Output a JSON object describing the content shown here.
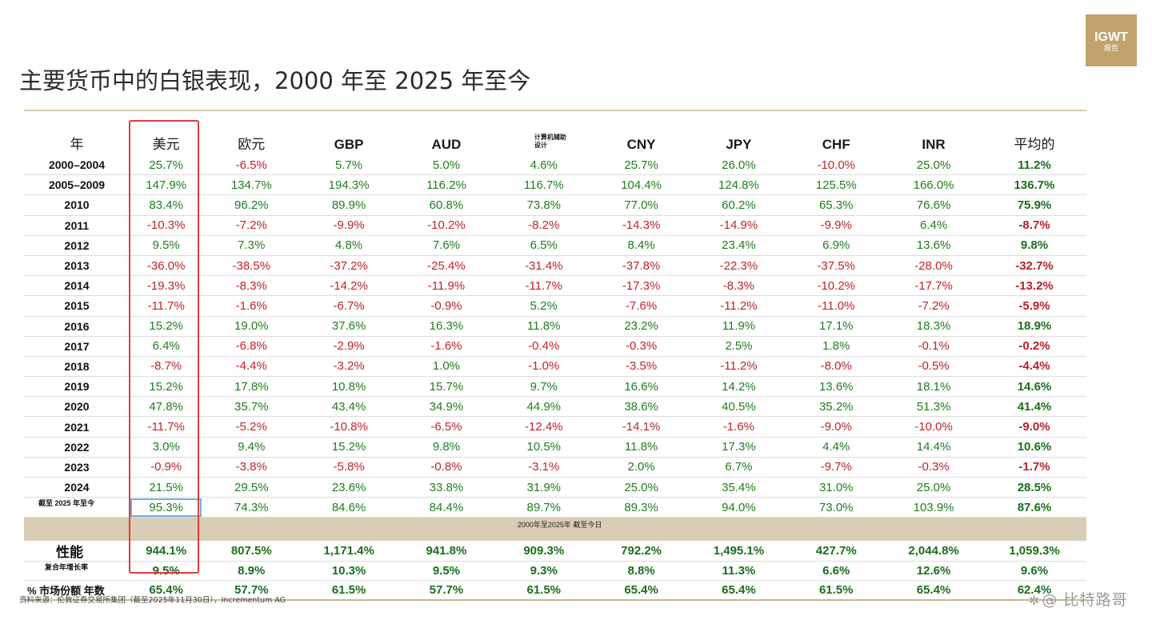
{
  "logo": {
    "line1": "IGWT",
    "line2": "报告"
  },
  "title": "主要货币中的白银表现，2000 年至 2025 年至今",
  "header": {
    "year_col": "年",
    "currencies": [
      "美元",
      "欧元",
      "GBP",
      "AUD",
      "计算机辅助设计",
      "CNY",
      "JPY",
      "CHF",
      "INR",
      "平均的"
    ]
  },
  "rows": [
    {
      "year": "2000–2004",
      "values": [
        "25.7%",
        "-6.5%",
        "5.7%",
        "5.0%",
        "4.6%",
        "25.7%",
        "26.0%",
        "-10.0%",
        "25.0%",
        "11.2%"
      ]
    },
    {
      "year": "2005–2009",
      "values": [
        "147.9%",
        "134.7%",
        "194.3%",
        "116.2%",
        "116.7%",
        "104.4%",
        "124.8%",
        "125.5%",
        "166.0%",
        "136.7%"
      ]
    },
    {
      "year": "2010",
      "values": [
        "83.4%",
        "96.2%",
        "89.9%",
        "60.8%",
        "73.8%",
        "77.0%",
        "60.2%",
        "65.3%",
        "76.6%",
        "75.9%"
      ]
    },
    {
      "year": "2011",
      "values": [
        "-10.3%",
        "-7.2%",
        "-9.9%",
        "-10.2%",
        "-8.2%",
        "-14.3%",
        "-14.9%",
        "-9.9%",
        "6.4%",
        "-8.7%"
      ]
    },
    {
      "year": "2012",
      "values": [
        "9.5%",
        "7.3%",
        "4.8%",
        "7.6%",
        "6.5%",
        "8.4%",
        "23.4%",
        "6.9%",
        "13.6%",
        "9.8%"
      ]
    },
    {
      "year": "2013",
      "values": [
        "-36.0%",
        "-38.5%",
        "-37.2%",
        "-25.4%",
        "-31.4%",
        "-37.8%",
        "-22.3%",
        "-37.5%",
        "-28.0%",
        "-32.7%"
      ]
    },
    {
      "year": "2014",
      "values": [
        "-19.3%",
        "-8.3%",
        "-14.2%",
        "-11.9%",
        "-11.7%",
        "-17.3%",
        "-8.3%",
        "-10.2%",
        "-17.7%",
        "-13.2%"
      ]
    },
    {
      "year": "2015",
      "values": [
        "-11.7%",
        "-1.6%",
        "-6.7%",
        "-0.9%",
        "5.2%",
        "-7.6%",
        "-11.2%",
        "-11.0%",
        "-7.2%",
        "-5.9%"
      ]
    },
    {
      "year": "2016",
      "values": [
        "15.2%",
        "19.0%",
        "37.6%",
        "16.3%",
        "11.8%",
        "23.2%",
        "11.9%",
        "17.1%",
        "18.3%",
        "18.9%"
      ]
    },
    {
      "year": "2017",
      "values": [
        "6.4%",
        "-6.8%",
        "-2.9%",
        "-1.6%",
        "-0.4%",
        "-0.3%",
        "2.5%",
        "1.8%",
        "-0.1%",
        "-0.2%"
      ]
    },
    {
      "year": "2018",
      "values": [
        "-8.7%",
        "-4.4%",
        "-3.2%",
        "1.0%",
        "-1.0%",
        "-3.5%",
        "-11.2%",
        "-8.0%",
        "-0.5%",
        "-4.4%"
      ]
    },
    {
      "year": "2019",
      "values": [
        "15.2%",
        "17.8%",
        "10.8%",
        "15.7%",
        "9.7%",
        "16.6%",
        "14.2%",
        "13.6%",
        "18.1%",
        "14.6%"
      ]
    },
    {
      "year": "2020",
      "values": [
        "47.8%",
        "35.7%",
        "43.4%",
        "34.9%",
        "44.9%",
        "38.6%",
        "40.5%",
        "35.2%",
        "51.3%",
        "41.4%"
      ]
    },
    {
      "year": "2021",
      "values": [
        "-11.7%",
        "-5.2%",
        "-10.8%",
        "-6.5%",
        "-12.4%",
        "-14.1%",
        "-1.6%",
        "-9.0%",
        "-10.0%",
        "-9.0%"
      ]
    },
    {
      "year": "2022",
      "values": [
        "3.0%",
        "9.4%",
        "15.2%",
        "9.8%",
        "10.5%",
        "11.8%",
        "17.3%",
        "4.4%",
        "14.4%",
        "10.6%"
      ]
    },
    {
      "year": "2023",
      "values": [
        "-0.9%",
        "-3.8%",
        "-5.8%",
        "-0.8%",
        "-3.1%",
        "2.0%",
        "6.7%",
        "-9.7%",
        "-0.3%",
        "-1.7%"
      ]
    },
    {
      "year": "2024",
      "values": [
        "21.5%",
        "29.5%",
        "23.6%",
        "33.8%",
        "31.9%",
        "25.0%",
        "35.4%",
        "31.0%",
        "25.0%",
        "28.5%"
      ]
    },
    {
      "year": "截至 2025 年至今",
      "values": [
        "95.3%",
        "74.3%",
        "84.6%",
        "84.4%",
        "89.7%",
        "89.3%",
        "94.0%",
        "73.0%",
        "103.9%",
        "87.6%"
      ]
    }
  ],
  "band_label": "2000年至2025年 截至今日",
  "performance": {
    "label": "性能",
    "values": [
      "944.1%",
      "807.5%",
      "1,171.4%",
      "941.8%",
      "909.3%",
      "792.2%",
      "1,495.1%",
      "427.7%",
      "2,044.8%",
      "1,059.3%"
    ]
  },
  "cagr": {
    "label": "复合年增长率",
    "values": [
      "9.5%",
      "8.9%",
      "10.3%",
      "9.5%",
      "9.3%",
      "8.8%",
      "11.3%",
      "6.6%",
      "12.6%",
      "9.6%"
    ]
  },
  "positive_years": {
    "label": "% 市场份额 年数",
    "values": [
      "65.4%",
      "57.7%",
      "61.5%",
      "57.7%",
      "61.5%",
      "65.4%",
      "65.4%",
      "61.5%",
      "65.4%",
      "62.4%"
    ]
  },
  "source": "资料来源：伦敦证券交易所集团（截至2025年11月30日），Incrementum AG",
  "watermark": "@ 比特路哥",
  "colors": {
    "positive": "#1f7d1f",
    "negative": "#c0232a",
    "accent_gold": "#c2a36b",
    "band": "#d9ceb5",
    "highlight_box": "#e23b3b"
  }
}
